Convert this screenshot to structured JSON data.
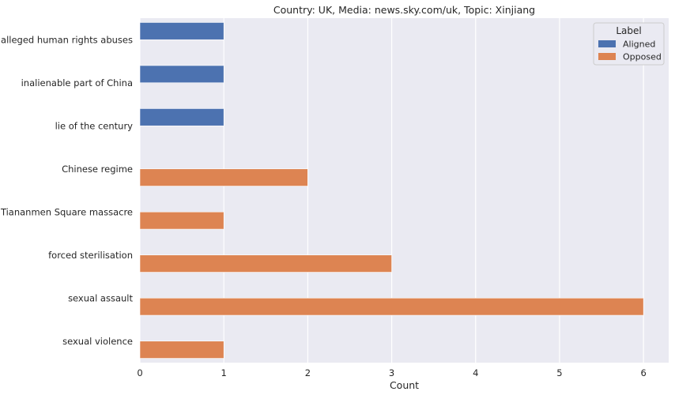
{
  "chart_data": {
    "type": "bar",
    "orientation": "horizontal",
    "title": "Country: UK, Media: news.sky.com/uk, Topic: Xinjiang",
    "xlabel": "Count",
    "ylabel": "",
    "xlim": [
      0,
      6.3
    ],
    "xticks": [
      0,
      1,
      2,
      3,
      4,
      5,
      6
    ],
    "grid": true,
    "categories": [
      "alleged human rights abuses",
      "inalienable part of China",
      "lie of the century",
      "Chinese regime",
      "Tiananmen Square massacre",
      "forced sterilisation",
      "sexual assault",
      "sexual violence"
    ],
    "series": [
      {
        "name": "Aligned",
        "color": "#4c72b0",
        "values": [
          1,
          1,
          1,
          0,
          0,
          0,
          0,
          0
        ]
      },
      {
        "name": "Opposed",
        "color": "#dd8452",
        "values": [
          0,
          0,
          0,
          2,
          1,
          3,
          6,
          1
        ]
      }
    ],
    "legend": {
      "title": "Label",
      "placement": "top-right"
    }
  },
  "colors": {
    "plot_background": "#eaeaf2",
    "grid": "#ffffff"
  }
}
